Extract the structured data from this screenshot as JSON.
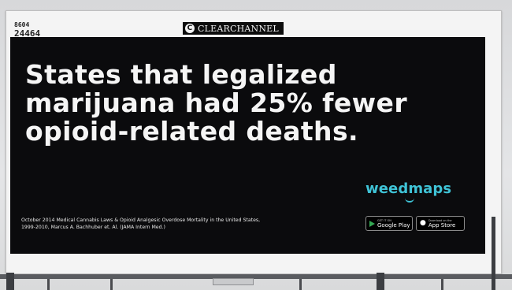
{
  "billboard": {
    "panel_number_top": "8604",
    "panel_number_bottom": "24464",
    "brand_mark": "C",
    "brand_name": "CLEARCHANNEL"
  },
  "ad": {
    "headline_lines": [
      "States that legalized",
      "marijuana had 25% fewer",
      "opioid-related deaths."
    ],
    "logo_text": "weedmaps",
    "citation_lines": [
      "October 2014 Medical Cannabis Laws & Opioid Analgesic Overdose Mortality in the United States,",
      "1999-2010, Marcus A. Bachhuber et. Al. (JAMA Intern Med.)"
    ],
    "badges": [
      {
        "small": "GET IT ON",
        "name": "Google Play",
        "icon": "google-play-icon"
      },
      {
        "small": "Download on the",
        "name": "App Store",
        "icon": "apple-icon"
      }
    ]
  },
  "colors": {
    "ad_background": "#0b0b0d",
    "headline": "#f5f5f5",
    "logo": "#3fc3d6",
    "frame": "#f4f4f4"
  }
}
